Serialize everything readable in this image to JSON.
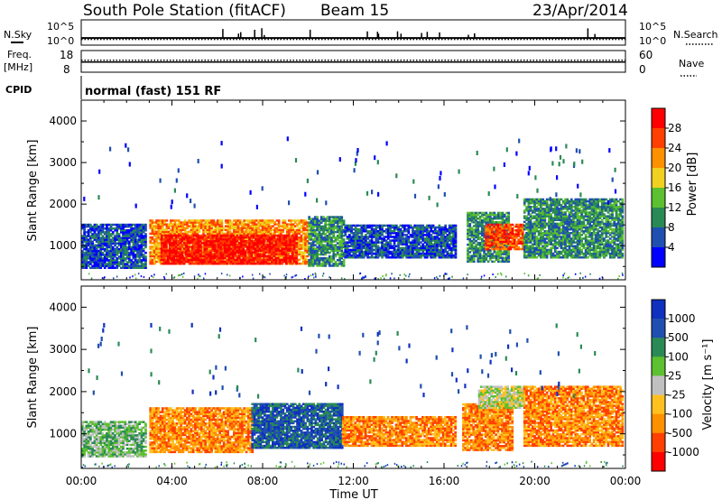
{
  "header": {
    "title": "South Pole Station (fitACF)",
    "beam": "Beam 15",
    "date": "23/Apr/2014"
  },
  "summary": {
    "nsky_label": "N.Sky",
    "nsearch_label": "N.Search",
    "noise_ticks_left": [
      "10^5",
      "10^0"
    ],
    "noise_ticks_right": [
      "10^5",
      "10^0"
    ],
    "freq_label_1": "Freq.",
    "freq_label_2": "[MHz]",
    "freq_ticks": [
      "18",
      "8"
    ],
    "nave_label": "Nave",
    "nave_ticks": [
      "60",
      "0"
    ],
    "cpid_label": "CPID",
    "cpid_value": "normal (fast) 151 RF",
    "nsky_level": 0.28,
    "nsearch_level": 0.05,
    "freq_level": 0.55,
    "nave_level": 0.25
  },
  "chart_data": [
    {
      "type": "heatmap",
      "panel": "power",
      "ylabel": "Slant Range [km]",
      "ylim": [
        180,
        4500
      ],
      "yticks": [
        "1000",
        "2000",
        "3000",
        "4000"
      ],
      "xlim": [
        0,
        24
      ],
      "xticks": [
        "00:00",
        "04:00",
        "08:00",
        "12:00",
        "16:00",
        "20:00",
        "00:00"
      ],
      "colorbar_label": "Power [dB]",
      "colorbar_ticks": [
        "4",
        "8",
        "12",
        "16",
        "20",
        "24",
        "28"
      ],
      "colors": [
        "#0000ff",
        "#1f4fb0",
        "#2a8a55",
        "#5cc030",
        "#f0d020",
        "#ff9000",
        "#ff4000",
        "#ff0000"
      ],
      "echo_bands": [
        {
          "t0": 0.0,
          "t1": 2.8,
          "r0": 450,
          "r1": 1500,
          "level": 1
        },
        {
          "t0": 3.0,
          "t1": 10.0,
          "r0": 550,
          "r1": 1600,
          "level": 5
        },
        {
          "t0": 3.5,
          "t1": 9.5,
          "r0": 550,
          "r1": 1250,
          "level": 7
        },
        {
          "t0": 10.0,
          "t1": 11.6,
          "r0": 500,
          "r1": 1700,
          "level": 2
        },
        {
          "t0": 11.6,
          "t1": 16.5,
          "r0": 700,
          "r1": 1500,
          "level": 1
        },
        {
          "t0": 17.0,
          "t1": 18.8,
          "r0": 600,
          "r1": 1800,
          "level": 2
        },
        {
          "t0": 17.8,
          "t1": 19.5,
          "r0": 900,
          "r1": 1500,
          "level": 6
        },
        {
          "t0": 19.5,
          "t1": 23.9,
          "r0": 700,
          "r1": 2100,
          "level": 2
        }
      ]
    },
    {
      "type": "heatmap",
      "panel": "velocity",
      "ylabel": "Slant Range [km]",
      "ylim": [
        180,
        4500
      ],
      "yticks": [
        "1000",
        "2000",
        "3000",
        "4000"
      ],
      "xlim": [
        0,
        24
      ],
      "xticks": [
        "00:00",
        "04:00",
        "08:00",
        "12:00",
        "16:00",
        "20:00",
        "00:00"
      ],
      "xlabel": "Time UT",
      "colorbar_label": "Velocity [m s⁻¹]",
      "colorbar_ticks": [
        "1000",
        "500",
        "100",
        "25",
        "-25",
        "-100",
        "-500",
        "-1000"
      ],
      "colors": [
        "#1030c0",
        "#1f4fb0",
        "#2a8a55",
        "#5cc030",
        "#c0c0c0",
        "#ffc020",
        "#ff9000",
        "#ff4000",
        "#ff0000"
      ],
      "echo_bands": [
        {
          "t0": 0.0,
          "t1": 2.8,
          "r0": 450,
          "r1": 1300,
          "level": 3
        },
        {
          "t0": 3.0,
          "t1": 7.5,
          "r0": 550,
          "r1": 1600,
          "level": 6
        },
        {
          "t0": 7.5,
          "t1": 11.5,
          "r0": 650,
          "r1": 1700,
          "level": 1
        },
        {
          "t0": 11.5,
          "t1": 16.5,
          "r0": 700,
          "r1": 1400,
          "level": 6
        },
        {
          "t0": 16.8,
          "t1": 19.0,
          "r0": 600,
          "r1": 1700,
          "level": 6
        },
        {
          "t0": 17.5,
          "t1": 19.5,
          "r0": 1600,
          "r1": 2100,
          "level": 4
        },
        {
          "t0": 19.5,
          "t1": 23.9,
          "r0": 700,
          "r1": 2100,
          "level": 6
        }
      ]
    }
  ]
}
